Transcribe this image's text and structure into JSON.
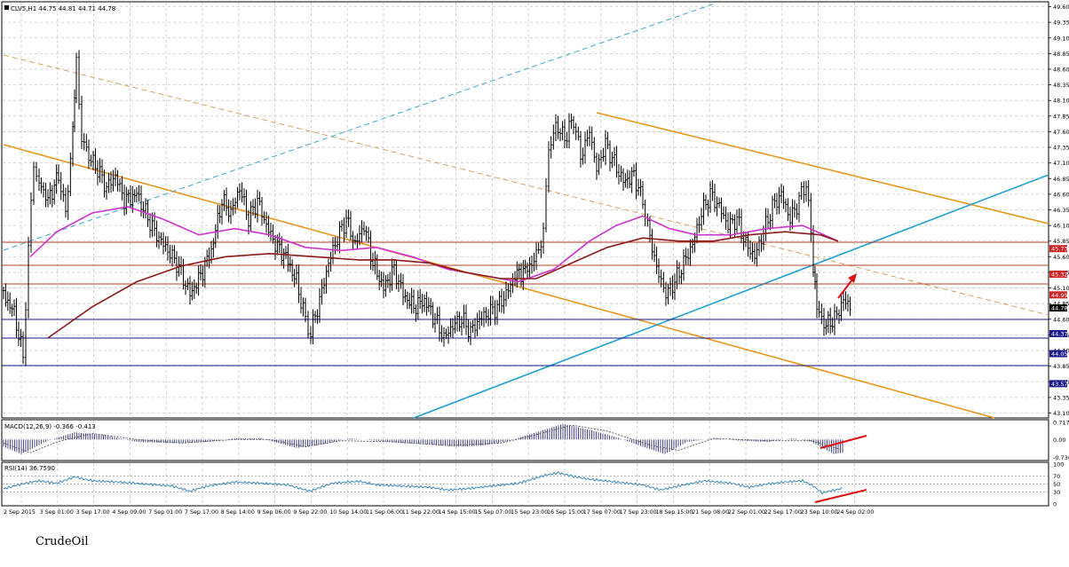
{
  "caption": "CrudeOil",
  "chart_data": {
    "type": "candlestick",
    "symbol_header": "CLV5,H1  44.75 44.81 44.71 44.78",
    "price_axis": {
      "ticks": [
        "49.60",
        "49.35",
        "49.10",
        "48.85",
        "48.60",
        "48.35",
        "48.10",
        "47.85",
        "47.60",
        "47.35",
        "47.10",
        "46.85",
        "46.60",
        "46.35",
        "46.10",
        "45.85",
        "45.60",
        "45.35",
        "45.10",
        "44.85",
        "44.60",
        "44.35",
        "44.10",
        "43.85",
        "43.60",
        "43.35",
        "43.10"
      ],
      "range": [
        43.05,
        49.65
      ]
    },
    "price_tags": [
      {
        "label": "45.73",
        "value": 45.73,
        "color": "#cc2222"
      },
      {
        "label": "45.32",
        "value": 45.32,
        "color": "#cc2222"
      },
      {
        "label": "44.99",
        "value": 44.99,
        "color": "#cc2222"
      },
      {
        "label": "44.78",
        "value": 44.78,
        "color": "#000000"
      },
      {
        "label": "44.37",
        "value": 44.37,
        "color": "#1a1a8c"
      },
      {
        "label": "44.05",
        "value": 44.05,
        "color": "#1a1a8c"
      },
      {
        "label": "43.57",
        "value": 43.57,
        "color": "#1a1a8c"
      }
    ],
    "time_axis": [
      "2 Sep 2015",
      "3 Sep 01:00",
      "3 Sep 17:00",
      "4 Sep 09:00",
      "7 Sep 01:00",
      "7 Sep 17:00",
      "8 Sep 14:00",
      "9 Sep 06:00",
      "9 Sep 22:00",
      "10 Sep 14:00",
      "11 Sep 06:00",
      "11 Sep 22:00",
      "14 Sep 15:00",
      "15 Sep 07:00",
      "15 Sep 23:00",
      "16 Sep 15:00",
      "17 Sep 07:00",
      "17 Sep 23:00",
      "18 Sep 15:00",
      "21 Sep 08:00",
      "22 Sep 01:00",
      "22 Sep 17:00",
      "23 Sep 10:00",
      "24 Sep 02:00"
    ],
    "price_path": [
      [
        0,
        45.0
      ],
      [
        12,
        44.7
      ],
      [
        22,
        44.0
      ],
      [
        28,
        45.8
      ],
      [
        34,
        47.0
      ],
      [
        40,
        46.8
      ],
      [
        50,
        46.5
      ],
      [
        62,
        46.9
      ],
      [
        70,
        46.3
      ],
      [
        78,
        47.6
      ],
      [
        82,
        48.7
      ],
      [
        88,
        47.5
      ],
      [
        96,
        47.2
      ],
      [
        106,
        47.0
      ],
      [
        116,
        46.7
      ],
      [
        126,
        46.9
      ],
      [
        136,
        46.5
      ],
      [
        150,
        46.6
      ],
      [
        160,
        46.3
      ],
      [
        170,
        46.0
      ],
      [
        180,
        45.8
      ],
      [
        195,
        45.5
      ],
      [
        210,
        45.0
      ],
      [
        222,
        45.3
      ],
      [
        234,
        45.7
      ],
      [
        246,
        46.5
      ],
      [
        256,
        46.3
      ],
      [
        266,
        46.7
      ],
      [
        276,
        46.2
      ],
      [
        286,
        46.5
      ],
      [
        296,
        46.1
      ],
      [
        306,
        45.8
      ],
      [
        318,
        45.6
      ],
      [
        330,
        45.2
      ],
      [
        340,
        44.6
      ],
      [
        346,
        44.4
      ],
      [
        356,
        44.9
      ],
      [
        366,
        45.5
      ],
      [
        376,
        45.9
      ],
      [
        386,
        46.2
      ],
      [
        396,
        45.8
      ],
      [
        406,
        46.1
      ],
      [
        416,
        45.5
      ],
      [
        428,
        45.1
      ],
      [
        440,
        45.4
      ],
      [
        450,
        45.0
      ],
      [
        462,
        44.8
      ],
      [
        474,
        44.9
      ],
      [
        486,
        44.6
      ],
      [
        496,
        44.3
      ],
      [
        506,
        44.5
      ],
      [
        516,
        44.6
      ],
      [
        526,
        44.4
      ],
      [
        536,
        44.6
      ],
      [
        546,
        44.7
      ],
      [
        556,
        44.8
      ],
      [
        566,
        45.0
      ],
      [
        576,
        45.3
      ],
      [
        590,
        45.4
      ],
      [
        600,
        45.6
      ],
      [
        608,
        46.0
      ],
      [
        614,
        47.3
      ],
      [
        622,
        47.7
      ],
      [
        632,
        47.5
      ],
      [
        642,
        47.8
      ],
      [
        650,
        47.2
      ],
      [
        660,
        47.6
      ],
      [
        668,
        47.0
      ],
      [
        678,
        47.4
      ],
      [
        688,
        47.1
      ],
      [
        698,
        46.8
      ],
      [
        710,
        46.9
      ],
      [
        720,
        46.5
      ],
      [
        728,
        45.9
      ],
      [
        738,
        45.3
      ],
      [
        746,
        45.0
      ],
      [
        756,
        45.2
      ],
      [
        766,
        45.5
      ],
      [
        776,
        45.8
      ],
      [
        786,
        46.3
      ],
      [
        796,
        46.6
      ],
      [
        806,
        46.4
      ],
      [
        816,
        46.1
      ],
      [
        826,
        46.2
      ],
      [
        836,
        45.8
      ],
      [
        846,
        45.6
      ],
      [
        856,
        46.0
      ],
      [
        866,
        46.4
      ],
      [
        876,
        46.6
      ],
      [
        886,
        46.2
      ],
      [
        896,
        46.5
      ],
      [
        904,
        46.8
      ],
      [
        912,
        45.5
      ],
      [
        916,
        44.8
      ],
      [
        924,
        44.5
      ],
      [
        936,
        44.6
      ],
      [
        946,
        44.9
      ],
      [
        956,
        44.78
      ]
    ],
    "moving_averages": [
      {
        "color": "#cc33cc",
        "points": [
          [
            30,
            45.6
          ],
          [
            60,
            46.0
          ],
          [
            100,
            46.3
          ],
          [
            140,
            46.4
          ],
          [
            180,
            46.2
          ],
          [
            220,
            45.95
          ],
          [
            260,
            46.05
          ],
          [
            300,
            45.95
          ],
          [
            340,
            45.75
          ],
          [
            380,
            45.7
          ],
          [
            420,
            45.75
          ],
          [
            460,
            45.6
          ],
          [
            500,
            45.4
          ],
          [
            540,
            45.3
          ],
          [
            580,
            45.2
          ],
          [
            620,
            45.4
          ],
          [
            660,
            45.85
          ],
          [
            690,
            46.1
          ],
          [
            720,
            46.25
          ],
          [
            750,
            46.05
          ],
          [
            780,
            45.95
          ],
          [
            820,
            45.95
          ],
          [
            860,
            46.05
          ],
          [
            900,
            46.1
          ],
          [
            940,
            45.85
          ]
        ]
      },
      {
        "color": "#8b1a1a",
        "points": [
          [
            50,
            44.3
          ],
          [
            100,
            44.8
          ],
          [
            150,
            45.2
          ],
          [
            200,
            45.45
          ],
          [
            250,
            45.6
          ],
          [
            300,
            45.65
          ],
          [
            350,
            45.6
          ],
          [
            400,
            45.55
          ],
          [
            440,
            45.55
          ],
          [
            480,
            45.5
          ],
          [
            520,
            45.35
          ],
          [
            560,
            45.25
          ],
          [
            600,
            45.25
          ],
          [
            640,
            45.5
          ],
          [
            680,
            45.75
          ],
          [
            720,
            45.9
          ],
          [
            760,
            45.85
          ],
          [
            800,
            45.85
          ],
          [
            840,
            45.95
          ],
          [
            880,
            46.0
          ],
          [
            920,
            45.95
          ],
          [
            940,
            45.85
          ]
        ]
      }
    ],
    "macd": {
      "label": "MACD(12,26,9) -0.366 -0.413",
      "ticks": [
        "0.717",
        "0.00",
        "-0.736"
      ],
      "range": [
        -0.8,
        0.75
      ],
      "hist": [
        [
          0,
          -0.3
        ],
        [
          20,
          -0.6
        ],
        [
          50,
          -0.05
        ],
        [
          80,
          0.3
        ],
        [
          110,
          0.2
        ],
        [
          150,
          -0.1
        ],
        [
          190,
          -0.15
        ],
        [
          230,
          -0.1
        ],
        [
          260,
          0.05
        ],
        [
          290,
          0.05
        ],
        [
          330,
          -0.35
        ],
        [
          360,
          -0.2
        ],
        [
          390,
          0.05
        ],
        [
          420,
          -0.05
        ],
        [
          450,
          -0.15
        ],
        [
          480,
          -0.2
        ],
        [
          510,
          -0.3
        ],
        [
          540,
          -0.25
        ],
        [
          570,
          -0.05
        ],
        [
          600,
          0.3
        ],
        [
          630,
          0.65
        ],
        [
          660,
          0.4
        ],
        [
          690,
          0.1
        ],
        [
          720,
          -0.3
        ],
        [
          745,
          -0.6
        ],
        [
          770,
          -0.1
        ],
        [
          800,
          0.05
        ],
        [
          830,
          -0.05
        ],
        [
          860,
          -0.1
        ],
        [
          890,
          0.05
        ],
        [
          910,
          -0.1
        ],
        [
          935,
          -0.6
        ],
        [
          946,
          -0.55
        ]
      ],
      "signal": [
        [
          0,
          -0.15
        ],
        [
          30,
          -0.55
        ],
        [
          60,
          -0.1
        ],
        [
          100,
          0.25
        ],
        [
          150,
          0.0
        ],
        [
          200,
          -0.15
        ],
        [
          260,
          0.0
        ],
        [
          300,
          0.0
        ],
        [
          340,
          -0.3
        ],
        [
          380,
          -0.05
        ],
        [
          440,
          -0.1
        ],
        [
          500,
          -0.25
        ],
        [
          560,
          -0.15
        ],
        [
          600,
          0.2
        ],
        [
          640,
          0.6
        ],
        [
          680,
          0.35
        ],
        [
          730,
          -0.25
        ],
        [
          760,
          -0.45
        ],
        [
          800,
          0.05
        ],
        [
          860,
          -0.05
        ],
        [
          910,
          -0.05
        ],
        [
          946,
          -0.45
        ]
      ]
    },
    "rsi": {
      "label": "RSI(14) 36.7590",
      "ticks": [
        "100",
        "70",
        "50",
        "30",
        "0"
      ],
      "range": [
        0,
        100
      ],
      "points": [
        [
          0,
          38
        ],
        [
          20,
          50
        ],
        [
          40,
          58
        ],
        [
          60,
          52
        ],
        [
          80,
          68
        ],
        [
          100,
          58
        ],
        [
          130,
          55
        ],
        [
          160,
          50
        ],
        [
          190,
          45
        ],
        [
          210,
          32
        ],
        [
          230,
          45
        ],
        [
          260,
          55
        ],
        [
          290,
          52
        ],
        [
          320,
          48
        ],
        [
          345,
          32
        ],
        [
          370,
          52
        ],
        [
          400,
          57
        ],
        [
          420,
          48
        ],
        [
          450,
          45
        ],
        [
          480,
          42
        ],
        [
          500,
          35
        ],
        [
          520,
          38
        ],
        [
          550,
          45
        ],
        [
          580,
          52
        ],
        [
          610,
          72
        ],
        [
          625,
          78
        ],
        [
          640,
          70
        ],
        [
          660,
          62
        ],
        [
          690,
          55
        ],
        [
          720,
          48
        ],
        [
          740,
          35
        ],
        [
          760,
          45
        ],
        [
          790,
          58
        ],
        [
          820,
          52
        ],
        [
          840,
          42
        ],
        [
          860,
          50
        ],
        [
          880,
          55
        ],
        [
          900,
          58
        ],
        [
          912,
          45
        ],
        [
          922,
          28
        ],
        [
          946,
          40
        ]
      ]
    },
    "annotations": {
      "arrow_color": "#dd1111"
    }
  }
}
